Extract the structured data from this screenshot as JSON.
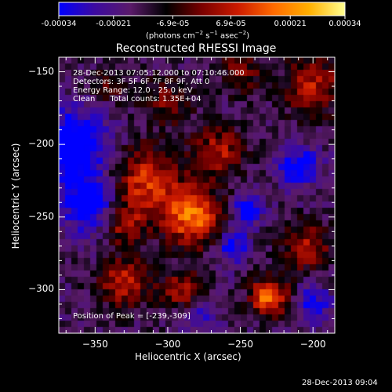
{
  "colorbar": {
    "tick_labels": [
      "-0.00034",
      "-0.00021",
      "-6.9e-05",
      "6.9e-05",
      "0.00021",
      "0.00034"
    ],
    "tick_values": [
      -0.00034,
      -0.00021,
      -6.9e-05,
      6.9e-05,
      0.00021,
      0.00034
    ],
    "range": [
      -0.00034,
      0.00034
    ],
    "units_prefix": "(photons cm",
    "units_exp1": "−2",
    "units_mid1": " s",
    "units_exp2": "−1",
    "units_mid2": " asec",
    "units_exp3": "−2",
    "units_suffix": ")",
    "colors": [
      "#0000ff",
      "#3c0aa0",
      "#5a1a6a",
      "#000000",
      "#7a0000",
      "#cc1a00",
      "#ff6a00",
      "#ffb000",
      "#ffff90"
    ]
  },
  "chart_data": {
    "type": "heatmap",
    "title": "Reconstructed RHESSI Image",
    "xlabel": "Heliocentric X (arcsec)",
    "ylabel": "Heliocentric Y (arcsec)",
    "xlim": [
      -375,
      -185
    ],
    "ylim": [
      -330,
      -140
    ],
    "x_ticks": [
      -350,
      -300,
      -250,
      -200
    ],
    "x_tick_labels": [
      "−350",
      "−300",
      "−250",
      "−200"
    ],
    "y_ticks": [
      -150,
      -200,
      -250,
      -300
    ],
    "y_tick_labels": [
      "−150",
      "−200",
      "−250",
      "−300"
    ],
    "value_range": [
      -0.00034,
      0.00034
    ],
    "info_lines": [
      "28-Dec-2013 07:05:12.000 to 07:10:46.000",
      "Detectors: 3F 5F 6F 7F 8F 9F, Att 0",
      "Energy Range: 12.0 - 25.0 keV",
      "Clean      Total counts: 1.35E+04"
    ],
    "peak_label": "Position of Peak = [-239,-309]",
    "peak": [
      -239,
      -309
    ],
    "sources": [
      {
        "x": -230,
        "y": -305,
        "sigma": 9,
        "amp": 1.0
      },
      {
        "x": -283,
        "y": -250,
        "sigma": 14,
        "amp": 0.95
      },
      {
        "x": -315,
        "y": -225,
        "sigma": 16,
        "amp": 0.75
      },
      {
        "x": -330,
        "y": -295,
        "sigma": 12,
        "amp": 0.65
      },
      {
        "x": -265,
        "y": -205,
        "sigma": 12,
        "amp": 0.6
      },
      {
        "x": -200,
        "y": -160,
        "sigma": 14,
        "amp": 0.6
      },
      {
        "x": -205,
        "y": -270,
        "sigma": 12,
        "amp": 0.55
      },
      {
        "x": -290,
        "y": -300,
        "sigma": 10,
        "amp": 0.55
      },
      {
        "x": -250,
        "y": -150,
        "sigma": 10,
        "amp": 0.45
      },
      {
        "x": -300,
        "y": -170,
        "sigma": 12,
        "amp": 0.4
      },
      {
        "x": -340,
        "y": -160,
        "sigma": 8,
        "amp": 0.35
      },
      {
        "x": -330,
        "y": -255,
        "sigma": 10,
        "amp": 0.55
      },
      {
        "x": -245,
        "y": -245,
        "sigma": 7,
        "amp": -0.7
      },
      {
        "x": -255,
        "y": -270,
        "sigma": 8,
        "amp": -0.6
      },
      {
        "x": -365,
        "y": -200,
        "sigma": 16,
        "amp": -0.85
      },
      {
        "x": -355,
        "y": -240,
        "sigma": 14,
        "amp": -0.7
      },
      {
        "x": -210,
        "y": -215,
        "sigma": 10,
        "amp": -0.6
      },
      {
        "x": -200,
        "y": -310,
        "sigma": 9,
        "amp": -0.5
      },
      {
        "x": -280,
        "y": -320,
        "sigma": 8,
        "amp": -0.4
      }
    ]
  },
  "timestamp": "28-Dec-2013 09:04"
}
